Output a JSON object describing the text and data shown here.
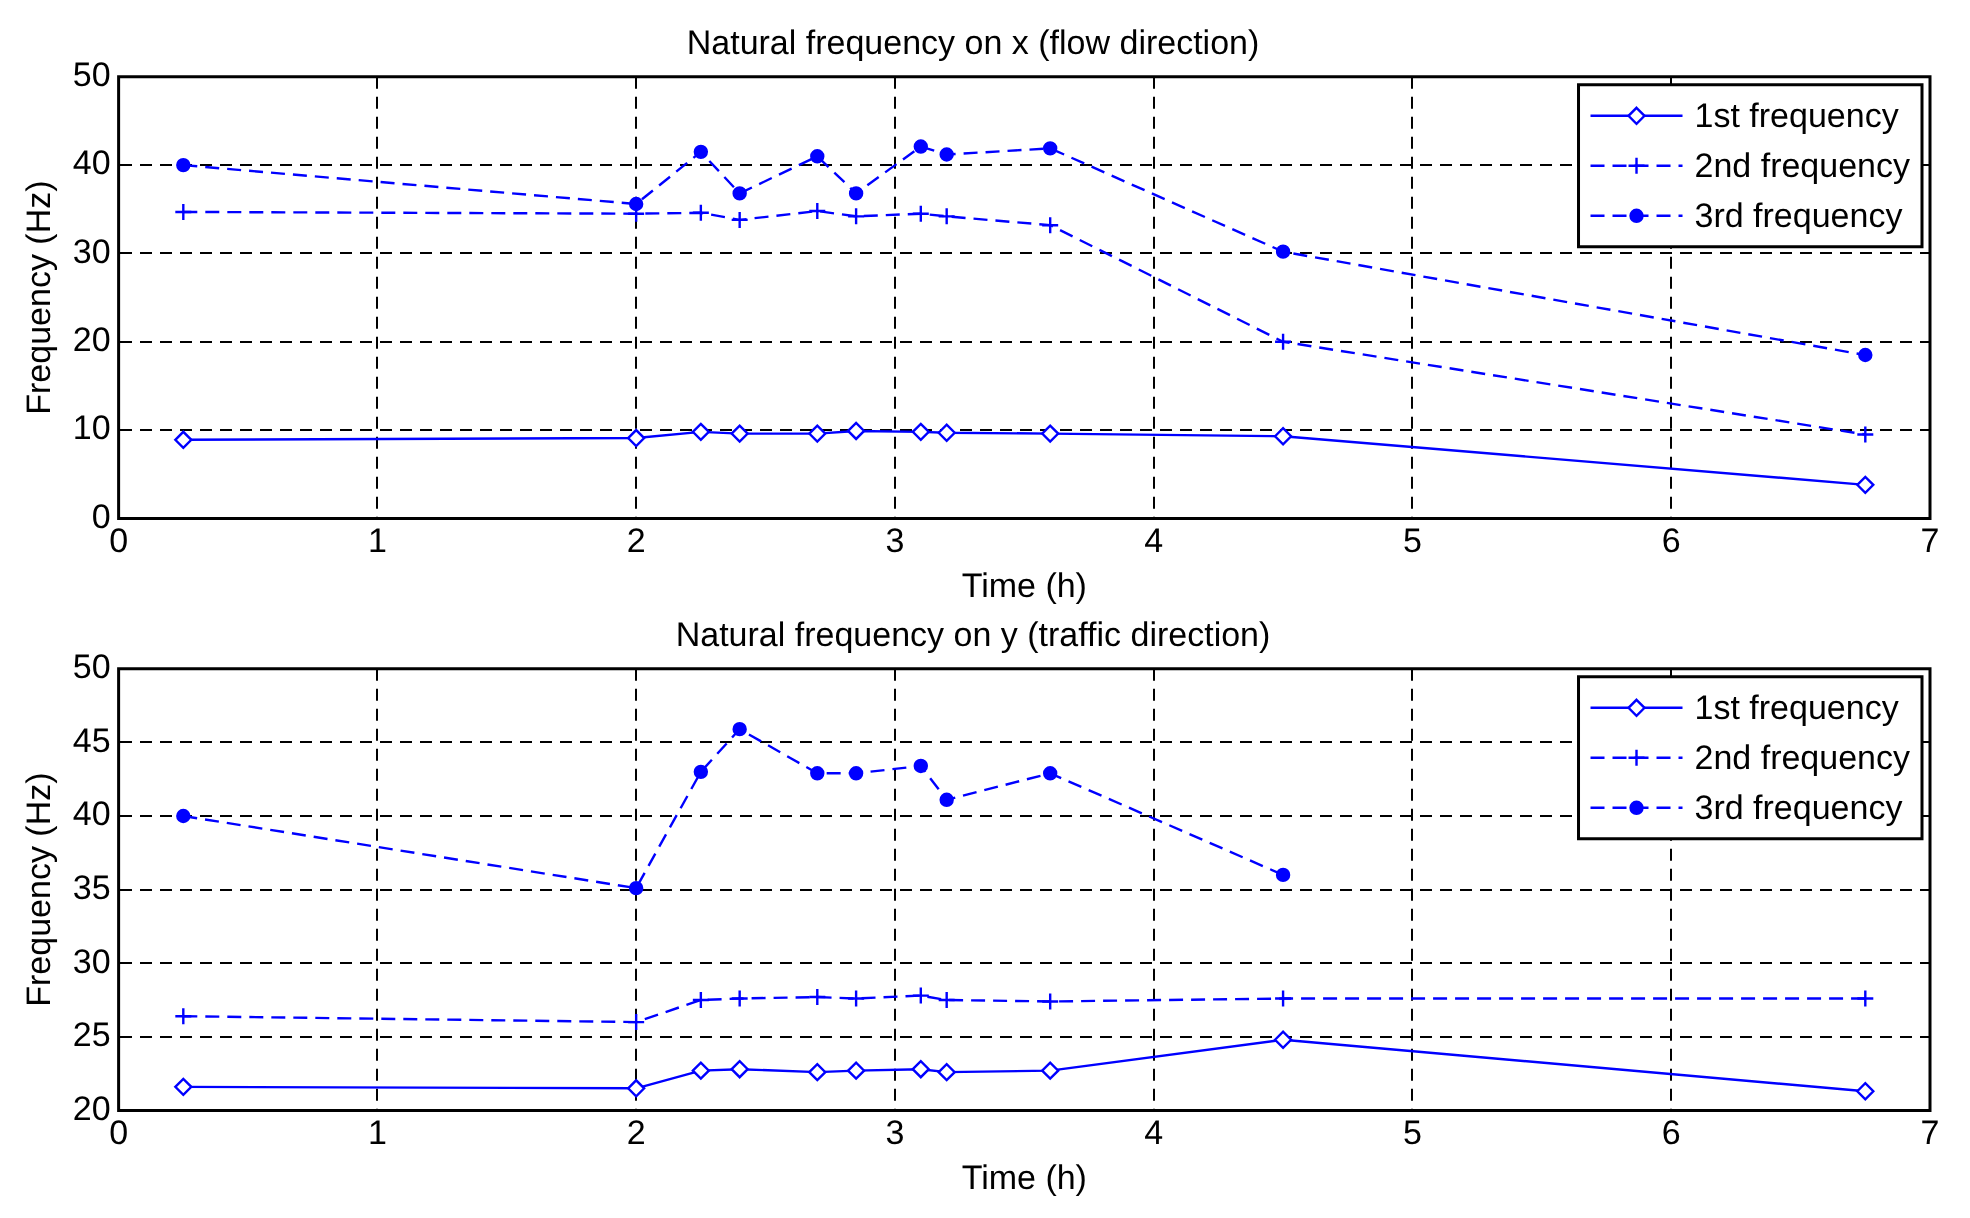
{
  "chart_data": [
    {
      "type": "line",
      "title": "Natural frequency on x (flow direction)",
      "xlabel": "Time (h)",
      "ylabel": "Frequency (Hz)",
      "x": [
        0.25,
        2,
        2.25,
        2.4,
        2.7,
        2.85,
        3.1,
        3.2,
        3.6,
        4.5,
        6.75
      ],
      "series": [
        {
          "name": "1st frequency",
          "color": "#0000ff",
          "marker": "diamond",
          "line_style": "solid",
          "values": [
            8.9,
            9.1,
            9.8,
            9.6,
            9.6,
            9.9,
            9.8,
            9.7,
            9.6,
            9.3,
            3.8
          ]
        },
        {
          "name": "2nd frequency",
          "color": "#0000ff",
          "marker": "cross",
          "line_style": "dashed",
          "values": [
            34.7,
            34.5,
            34.6,
            33.8,
            34.8,
            34.2,
            34.5,
            34.2,
            33.2,
            20,
            9.5
          ]
        },
        {
          "name": "3rd frequency",
          "color": "#0000ff",
          "marker": "circle",
          "line_style": "dashed",
          "values": [
            40,
            35.6,
            41.5,
            36.8,
            41,
            36.8,
            42.1,
            41.2,
            41.9,
            30.2,
            18.5
          ]
        }
      ],
      "xlim": [
        0,
        7
      ],
      "xticks": [
        0,
        1,
        2,
        3,
        4,
        5,
        6,
        7
      ],
      "ylim": [
        0,
        50
      ],
      "yticks": [
        0,
        10,
        20,
        30,
        40,
        50
      ],
      "grid": true,
      "legend": "top right"
    },
    {
      "type": "line",
      "title": "Natural frequency on y (traffic direction)",
      "xlabel": "Time (h)",
      "ylabel": "Frequency (Hz)",
      "x": [
        0.25,
        2,
        2.25,
        2.4,
        2.7,
        2.85,
        3.1,
        3.2,
        3.6,
        4.5,
        6.75
      ],
      "series": [
        {
          "name": "1st frequency",
          "color": "#0000ff",
          "marker": "diamond",
          "line_style": "solid",
          "values": [
            21.6,
            21.5,
            22.7,
            22.8,
            22.6,
            22.7,
            22.8,
            22.6,
            22.7,
            24.8,
            21.3
          ]
        },
        {
          "name": "2nd frequency",
          "color": "#0000ff",
          "marker": "cross",
          "line_style": "dashed",
          "values": [
            26.4,
            26,
            27.5,
            27.6,
            27.7,
            27.6,
            27.8,
            27.5,
            27.4,
            27.6,
            27.6
          ]
        },
        {
          "name": "3rd frequency",
          "color": "#0000ff",
          "marker": "circle",
          "line_style": "dashed",
          "values": [
            40,
            35.1,
            43,
            45.9,
            42.9,
            42.9,
            43.4,
            41.1,
            42.9,
            36,
            null
          ]
        }
      ],
      "xlim": [
        0,
        7
      ],
      "xticks": [
        0,
        1,
        2,
        3,
        4,
        5,
        6,
        7
      ],
      "ylim": [
        20,
        50
      ],
      "yticks": [
        20,
        25,
        30,
        35,
        40,
        45,
        50
      ],
      "grid": true,
      "legend": "top right"
    }
  ]
}
